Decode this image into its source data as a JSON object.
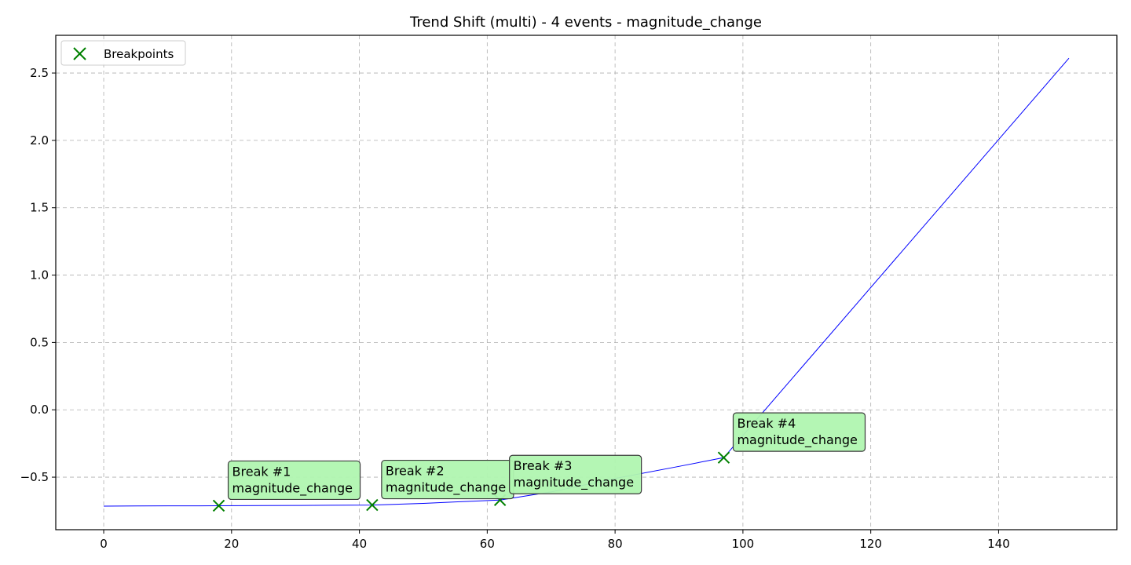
{
  "chart_data": {
    "type": "line",
    "title": "Trend Shift (multi) - 4 events - magnitude_change",
    "xlabel": "",
    "ylabel": "",
    "xlim": [
      -7.5,
      158.5
    ],
    "ylim": [
      -0.89,
      2.78
    ],
    "x_ticks": [
      0,
      20,
      40,
      60,
      80,
      100,
      120,
      140
    ],
    "y_ticks": [
      -0.5,
      0.0,
      0.5,
      1.0,
      1.5,
      2.0,
      2.5
    ],
    "y_tick_labels": [
      "−0.5",
      "0.0",
      "0.5",
      "1.0",
      "1.5",
      "2.0",
      "2.5"
    ],
    "grid": true,
    "line_color": "#0000ff",
    "marker_color": "#008000",
    "annotation_bg": "#b0f5b0",
    "series": [
      {
        "x": [
          0,
          5,
          10,
          15,
          18,
          25,
          30,
          35,
          42,
          50,
          55,
          62,
          70,
          80,
          90,
          97,
          151
        ],
        "y": [
          -0.715,
          -0.714,
          -0.713,
          -0.713,
          -0.712,
          -0.711,
          -0.71,
          -0.709,
          -0.707,
          -0.695,
          -0.684,
          -0.67,
          -0.61,
          -0.51,
          -0.42,
          -0.355,
          2.61
        ]
      }
    ],
    "legend": {
      "position": "top-left",
      "entries": [
        {
          "label": "Breakpoints",
          "marker": "x"
        }
      ]
    },
    "breakpoints": [
      {
        "x": 18,
        "y": -0.712,
        "label": "Break #1",
        "type": "magnitude_change"
      },
      {
        "x": 42,
        "y": -0.707,
        "label": "Break #2",
        "type": "magnitude_change"
      },
      {
        "x": 62,
        "y": -0.67,
        "label": "Break #3",
        "type": "magnitude_change"
      },
      {
        "x": 97,
        "y": -0.355,
        "label": "Break #4",
        "type": "magnitude_change"
      }
    ]
  }
}
